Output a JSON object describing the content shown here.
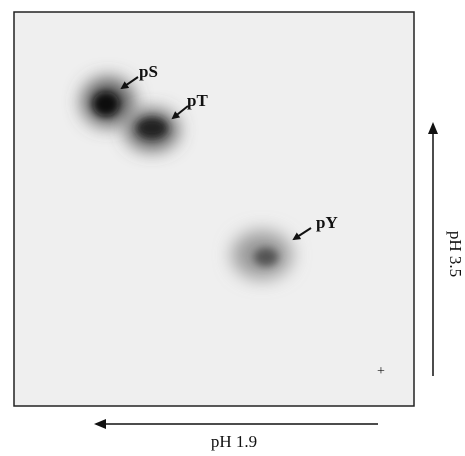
{
  "spots": [
    {
      "label": "pS"
    },
    {
      "label": "pT"
    },
    {
      "label": "pY"
    }
  ],
  "origin_mark": "+",
  "x_axis": {
    "label": "pH 1.9"
  },
  "y_axis": {
    "label": "pH 3.5"
  }
}
